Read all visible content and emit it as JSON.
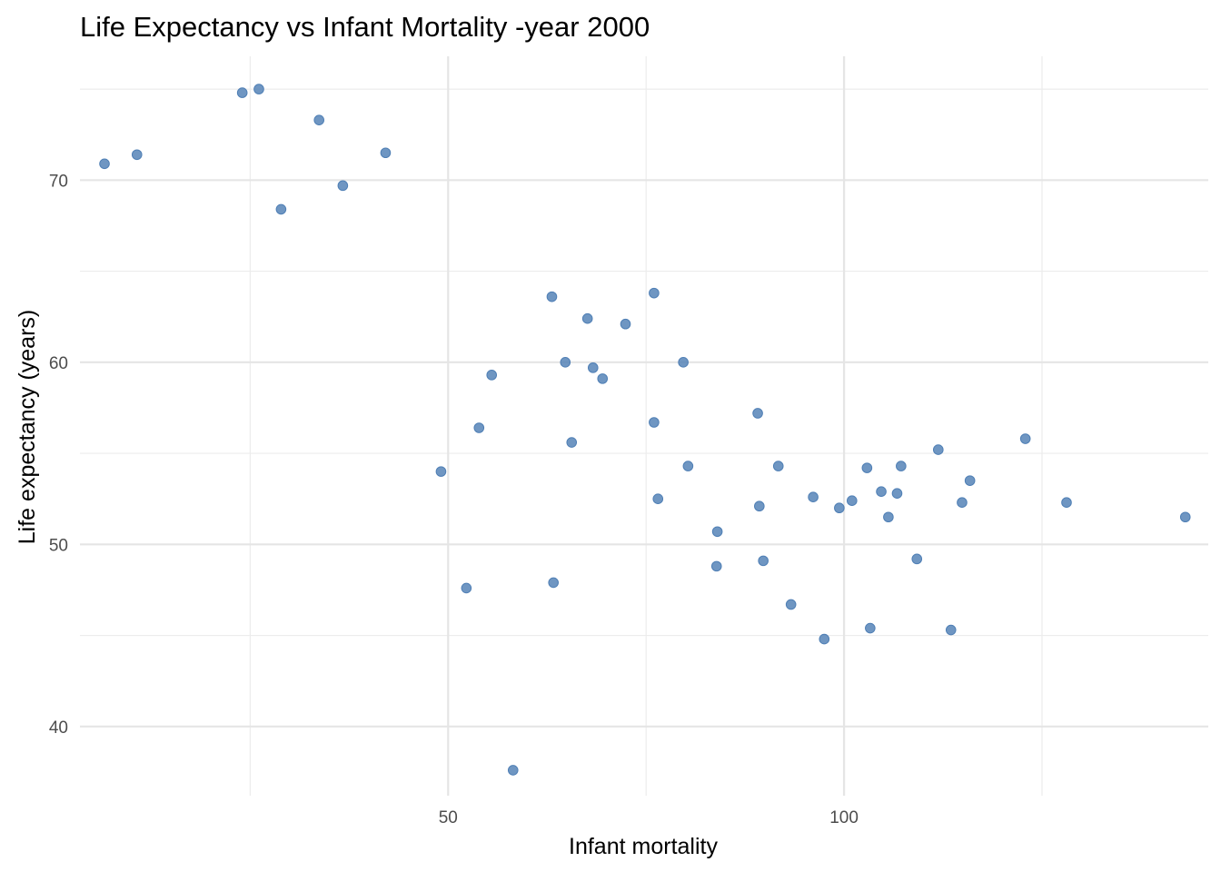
{
  "chart_data": {
    "type": "scatter",
    "title": "Life Expectancy vs Infant Mortality -year 2000",
    "xlabel": "Infant mortality",
    "ylabel": "Life expectancy (years)",
    "xlim": [
      3.5,
      146
    ],
    "ylim": [
      36.2,
      76.8
    ],
    "x_major_ticks": [
      50,
      100
    ],
    "x_minor_ticks": [
      25,
      75,
      125
    ],
    "y_major_ticks": [
      40,
      50,
      60,
      70
    ],
    "y_minor_ticks": [
      45,
      55,
      65,
      75
    ],
    "x_tick_labels": [
      "50",
      "100"
    ],
    "y_tick_labels": [
      "40",
      "50",
      "60",
      "70"
    ],
    "grid": true,
    "legend": "none",
    "point_color": "#4f7fb5",
    "points": [
      {
        "x": 6.6,
        "y": 70.9
      },
      {
        "x": 10.7,
        "y": 71.4
      },
      {
        "x": 24.0,
        "y": 74.8
      },
      {
        "x": 26.1,
        "y": 75.0
      },
      {
        "x": 28.9,
        "y": 68.4
      },
      {
        "x": 33.7,
        "y": 73.3
      },
      {
        "x": 36.7,
        "y": 69.7
      },
      {
        "x": 42.1,
        "y": 71.5
      },
      {
        "x": 49.1,
        "y": 54.0
      },
      {
        "x": 52.3,
        "y": 47.6
      },
      {
        "x": 53.9,
        "y": 56.4
      },
      {
        "x": 55.5,
        "y": 59.3
      },
      {
        "x": 58.2,
        "y": 37.6
      },
      {
        "x": 63.1,
        "y": 63.6
      },
      {
        "x": 63.3,
        "y": 47.9
      },
      {
        "x": 64.8,
        "y": 60.0
      },
      {
        "x": 65.6,
        "y": 55.6
      },
      {
        "x": 67.6,
        "y": 62.4
      },
      {
        "x": 68.3,
        "y": 59.7
      },
      {
        "x": 69.5,
        "y": 59.1
      },
      {
        "x": 72.4,
        "y": 62.1
      },
      {
        "x": 76.0,
        "y": 63.8
      },
      {
        "x": 76.0,
        "y": 56.7
      },
      {
        "x": 76.5,
        "y": 52.5
      },
      {
        "x": 79.7,
        "y": 60.0
      },
      {
        "x": 80.3,
        "y": 54.3
      },
      {
        "x": 84.0,
        "y": 50.7
      },
      {
        "x": 83.9,
        "y": 48.8
      },
      {
        "x": 89.1,
        "y": 57.2
      },
      {
        "x": 89.3,
        "y": 52.1
      },
      {
        "x": 89.8,
        "y": 49.1
      },
      {
        "x": 91.7,
        "y": 54.3
      },
      {
        "x": 93.3,
        "y": 46.7
      },
      {
        "x": 96.1,
        "y": 52.6
      },
      {
        "x": 97.5,
        "y": 44.8
      },
      {
        "x": 99.4,
        "y": 52.0
      },
      {
        "x": 101.0,
        "y": 52.4
      },
      {
        "x": 102.9,
        "y": 54.2
      },
      {
        "x": 103.3,
        "y": 45.4
      },
      {
        "x": 104.7,
        "y": 52.9
      },
      {
        "x": 105.6,
        "y": 51.5
      },
      {
        "x": 106.7,
        "y": 52.8
      },
      {
        "x": 107.2,
        "y": 54.3
      },
      {
        "x": 109.2,
        "y": 49.2
      },
      {
        "x": 111.9,
        "y": 55.2
      },
      {
        "x": 113.5,
        "y": 45.3
      },
      {
        "x": 114.9,
        "y": 52.3
      },
      {
        "x": 115.9,
        "y": 53.5
      },
      {
        "x": 122.9,
        "y": 55.8
      },
      {
        "x": 128.1,
        "y": 52.3
      },
      {
        "x": 143.1,
        "y": 51.5
      }
    ]
  }
}
